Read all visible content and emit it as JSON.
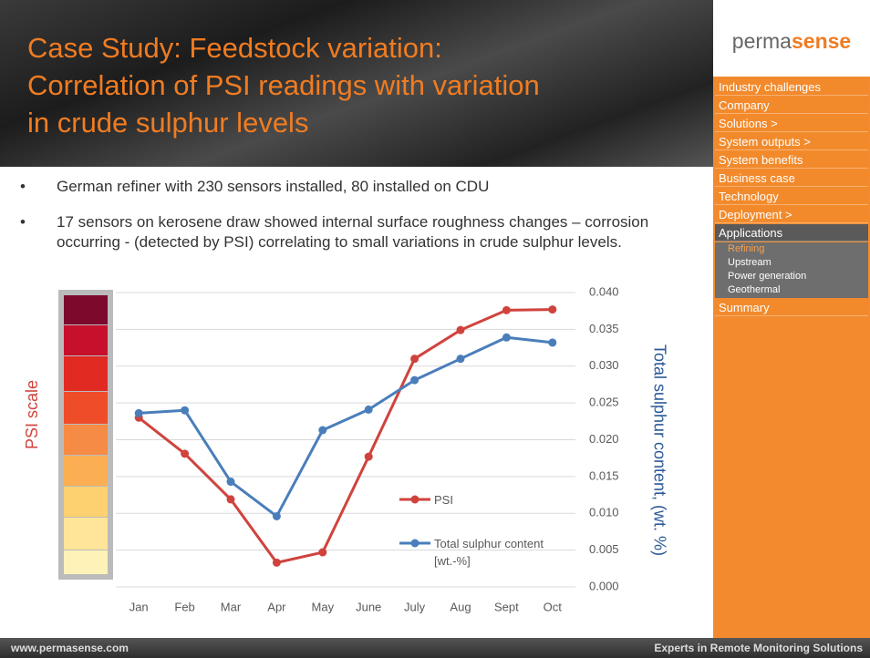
{
  "header": {
    "title": "Case Study: Feedstock variation: Correlation of PSI readings with variation in crude sulphur levels"
  },
  "bullets": [
    "German refiner with 230 sensors installed, 80 installed on CDU",
    "17 sensors on kerosene draw showed internal surface roughness changes – corrosion occurring - (detected by PSI) correlating to small variations in crude sulphur levels."
  ],
  "logo": [
    "perma",
    "sense"
  ],
  "sidebar": {
    "menu": [
      "Industry challenges",
      "Company",
      "Solutions >",
      "System outputs >",
      "System benefits",
      "Business case",
      "Technology",
      "Deployment >",
      "Applications"
    ],
    "submenu": [
      "Refining",
      "Upstream",
      "Power generation",
      "Geothermal"
    ],
    "last": "Summary"
  },
  "footer": {
    "url": "www.permasense.com",
    "tagline": "Experts in Remote Monitoring Solutions"
  },
  "chart_data": {
    "type": "line",
    "categories": [
      "Jan",
      "Feb",
      "Mar",
      "Apr",
      "May",
      "June",
      "July",
      "Aug",
      "Sept",
      "Oct"
    ],
    "series": [
      {
        "name": "PSI",
        "color": "#d0433d",
        "values": [
          0.023,
          0.0181,
          0.0119,
          0.0033,
          0.0047,
          0.0177,
          0.031,
          0.0349,
          0.0376,
          0.0377
        ]
      },
      {
        "name": "Total sulphur content [wt.-%]",
        "color": "#4a7ebb",
        "values": [
          0.0236,
          0.024,
          0.0143,
          0.0096,
          0.0213,
          0.0241,
          0.0281,
          0.031,
          0.0339,
          0.0332
        ]
      }
    ],
    "ylim": [
      0,
      0.04
    ],
    "yticks": [
      {
        "value": 0,
        "label": "0.000"
      },
      {
        "value": 0.005,
        "label": "0.005"
      },
      {
        "value": 0.01,
        "label": "0.010"
      },
      {
        "value": 0.015,
        "label": "0.015"
      },
      {
        "value": 0.02,
        "label": "0.020"
      },
      {
        "value": 0.025,
        "label": "0.025"
      },
      {
        "value": 0.03,
        "label": "0.030"
      },
      {
        "value": 0.035,
        "label": "0.035"
      },
      {
        "value": 0.04,
        "label": "0.040"
      }
    ],
    "grid": true,
    "scale_label": "PSI scale",
    "y_label": "Total sulphur content, (wt. %)"
  }
}
